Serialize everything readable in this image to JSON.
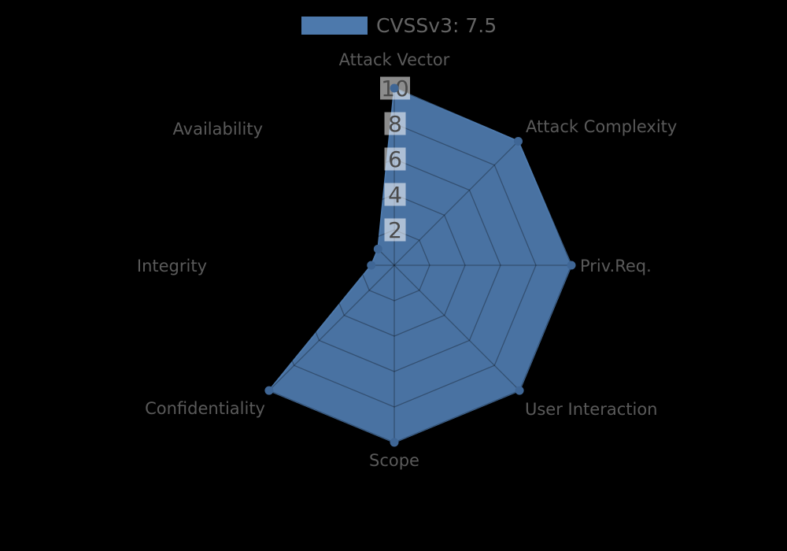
{
  "chart_data": {
    "type": "radar",
    "title": "CVSSv3: 7.5",
    "axes": [
      "Attack Vector",
      "Attack Complexity",
      "Priv.Req.",
      "User Interaction",
      "Scope",
      "Confidentiality",
      "Integrity",
      "Availability"
    ],
    "series": [
      {
        "name": "CVSSv3: 7.5",
        "values": [
          10,
          9.9,
          10,
          10,
          10,
          10,
          1.3,
          1.3
        ],
        "color": "#4d79ac"
      }
    ],
    "ticks": [
      2,
      4,
      6,
      8,
      10
    ],
    "rlim": [
      0,
      10
    ],
    "grid": true,
    "legend_position": "top"
  },
  "legend": {
    "label": "CVSSv3: 7.5",
    "swatch_color": "#4d79ac"
  },
  "colors": {
    "background": "#000000",
    "series_fill": "#4b76a7",
    "series_stroke": "#4d79ac",
    "vertex_dot": "#3f6695",
    "grid_line": "rgba(0,0,0,0.3)",
    "tick_box": "rgba(255,255,255,0.55)",
    "tick_text": "#4a4a4a",
    "axis_label_text": "#5a5a5a",
    "legend_text": "#646464"
  }
}
